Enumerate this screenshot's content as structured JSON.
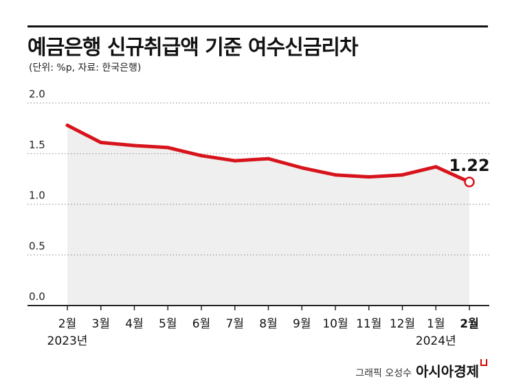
{
  "title": "예금은행 신규취급액 기준 여수신금리차",
  "subtitle": "(단위: %p, 자료: 한국은행)",
  "credit": {
    "text": "그래픽 오성수",
    "brand": "아시아경제"
  },
  "colors": {
    "line": "#d7141c",
    "fill": "#efefef",
    "grid": "#9a9a9a",
    "axis": "#222222"
  },
  "chart_data": {
    "type": "line",
    "title": "예금은행 신규취급액 기준 여수신금리차",
    "categories": [
      "2월",
      "3월",
      "4월",
      "5월",
      "6월",
      "7월",
      "8월",
      "9월",
      "10월",
      "11월",
      "12월",
      "1월",
      "2월"
    ],
    "year_labels": [
      {
        "index": 0,
        "label": "2023년"
      },
      {
        "index": 11,
        "label": "2024년"
      }
    ],
    "values": [
      1.78,
      1.61,
      1.58,
      1.56,
      1.48,
      1.43,
      1.45,
      1.36,
      1.29,
      1.27,
      1.29,
      1.37,
      1.22
    ],
    "highlight": {
      "index": 12,
      "label": "1.22"
    },
    "yticks": [
      "2.0",
      "1.5",
      "1.0",
      "0.5",
      "0.0"
    ],
    "ylim": [
      0,
      2.0
    ],
    "grid": true
  }
}
